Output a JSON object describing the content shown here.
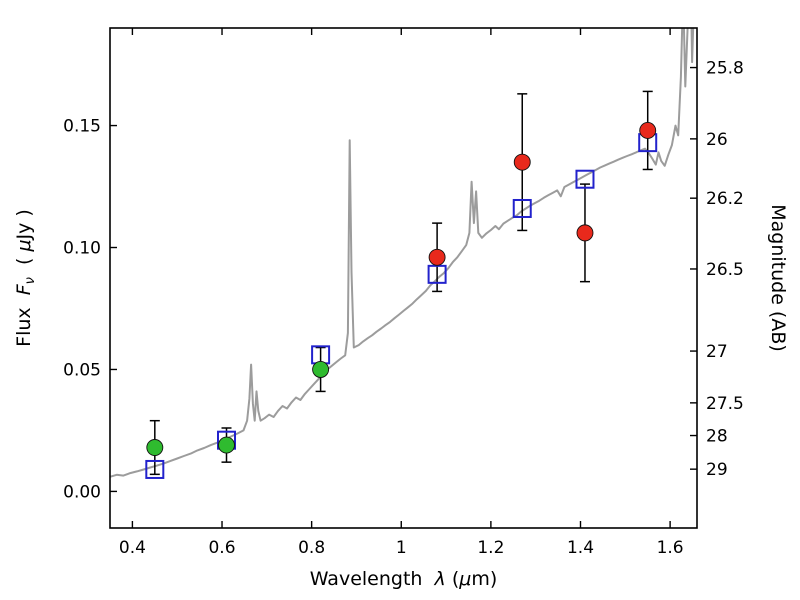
{
  "figure": {
    "background": "#ffffff",
    "frame_color": "#000000"
  },
  "chart_data": {
    "type": "scatter",
    "title": "",
    "xlabel": "Wavelength λ (μm)",
    "ylabel": "Flux Fν ( μJy )",
    "y2label": "Magnitude (AB)",
    "xlabel_parts": [
      {
        "text": "Wavelength  ",
        "italic": false
      },
      {
        "text": "λ",
        "italic": true
      },
      {
        "text": " (",
        "italic": false
      },
      {
        "text": "μ",
        "italic": true
      },
      {
        "text": "m)",
        "italic": false
      }
    ],
    "ylabel_parts": [
      {
        "text": "Flux  ",
        "italic": false
      },
      {
        "text": "F",
        "italic": true
      },
      {
        "text": "ν",
        "italic": true,
        "sub": true
      },
      {
        "text": "  ( ",
        "italic": false
      },
      {
        "text": "μ",
        "italic": true
      },
      {
        "text": "Jy )",
        "italic": false
      }
    ],
    "xlim": [
      0.35,
      1.66
    ],
    "ylim": [
      -0.015,
      0.19
    ],
    "grid": false,
    "legend": "none",
    "x_ticks": [
      {
        "v": 0.4,
        "label": "0.4"
      },
      {
        "v": 0.6,
        "label": "0.6"
      },
      {
        "v": 0.8,
        "label": "0.8"
      },
      {
        "v": 1.0,
        "label": "1"
      },
      {
        "v": 1.2,
        "label": "1.2"
      },
      {
        "v": 1.4,
        "label": "1.4"
      },
      {
        "v": 1.6,
        "label": "1.6"
      }
    ],
    "y_ticks": [
      {
        "v": 0.0,
        "label": "0.00"
      },
      {
        "v": 0.05,
        "label": "0.05"
      },
      {
        "v": 0.1,
        "label": "0.10"
      },
      {
        "v": 0.15,
        "label": "0.15"
      }
    ],
    "mag_zero_point": 23.9,
    "mag_ticks": [
      {
        "m": 25.8,
        "label": "25.8"
      },
      {
        "m": 26.0,
        "label": "26"
      },
      {
        "m": 26.2,
        "label": "26.2"
      },
      {
        "m": 26.5,
        "label": "26.5"
      },
      {
        "m": 27.0,
        "label": "27"
      },
      {
        "m": 27.5,
        "label": "27.5"
      },
      {
        "m": 28.0,
        "label": "28"
      },
      {
        "m": 29.0,
        "label": "29"
      }
    ],
    "series": [
      {
        "name": "model-spectrum",
        "type": "line",
        "color": "#9c9c9c",
        "width": 2,
        "points": [
          [
            0.35,
            0.006
          ],
          [
            0.365,
            0.0068
          ],
          [
            0.38,
            0.0065
          ],
          [
            0.395,
            0.0075
          ],
          [
            0.41,
            0.0082
          ],
          [
            0.425,
            0.009
          ],
          [
            0.44,
            0.0098
          ],
          [
            0.455,
            0.0106
          ],
          [
            0.47,
            0.0115
          ],
          [
            0.485,
            0.0125
          ],
          [
            0.5,
            0.0135
          ],
          [
            0.515,
            0.0145
          ],
          [
            0.53,
            0.0155
          ],
          [
            0.545,
            0.0168
          ],
          [
            0.56,
            0.0178
          ],
          [
            0.575,
            0.019
          ],
          [
            0.59,
            0.02
          ],
          [
            0.605,
            0.0212
          ],
          [
            0.62,
            0.0225
          ],
          [
            0.635,
            0.0238
          ],
          [
            0.648,
            0.025
          ],
          [
            0.656,
            0.029
          ],
          [
            0.661,
            0.038
          ],
          [
            0.665,
            0.052
          ],
          [
            0.669,
            0.036
          ],
          [
            0.673,
            0.029
          ],
          [
            0.677,
            0.041
          ],
          [
            0.681,
            0.033
          ],
          [
            0.686,
            0.029
          ],
          [
            0.695,
            0.03
          ],
          [
            0.705,
            0.0315
          ],
          [
            0.715,
            0.0305
          ],
          [
            0.725,
            0.033
          ],
          [
            0.735,
            0.035
          ],
          [
            0.745,
            0.034
          ],
          [
            0.755,
            0.0365
          ],
          [
            0.765,
            0.0385
          ],
          [
            0.775,
            0.0375
          ],
          [
            0.785,
            0.04
          ],
          [
            0.795,
            0.042
          ],
          [
            0.805,
            0.044
          ],
          [
            0.815,
            0.046
          ],
          [
            0.825,
            0.048
          ],
          [
            0.835,
            0.05
          ],
          [
            0.845,
            0.0515
          ],
          [
            0.855,
            0.053
          ],
          [
            0.865,
            0.0545
          ],
          [
            0.875,
            0.0558
          ],
          [
            0.881,
            0.065
          ],
          [
            0.885,
            0.144
          ],
          [
            0.889,
            0.09
          ],
          [
            0.894,
            0.059
          ],
          [
            0.905,
            0.06
          ],
          [
            0.915,
            0.0615
          ],
          [
            0.925,
            0.0628
          ],
          [
            0.935,
            0.064
          ],
          [
            0.945,
            0.0655
          ],
          [
            0.955,
            0.0668
          ],
          [
            0.965,
            0.0682
          ],
          [
            0.975,
            0.0695
          ],
          [
            0.985,
            0.071
          ],
          [
            0.995,
            0.0725
          ],
          [
            1.005,
            0.074
          ],
          [
            1.015,
            0.0755
          ],
          [
            1.025,
            0.077
          ],
          [
            1.035,
            0.0788
          ],
          [
            1.045,
            0.0805
          ],
          [
            1.055,
            0.0822
          ],
          [
            1.065,
            0.0845
          ],
          [
            1.075,
            0.0862
          ],
          [
            1.085,
            0.088
          ],
          [
            1.095,
            0.0895
          ],
          [
            1.105,
            0.0915
          ],
          [
            1.115,
            0.094
          ],
          [
            1.125,
            0.096
          ],
          [
            1.135,
            0.0985
          ],
          [
            1.145,
            0.101
          ],
          [
            1.152,
            0.106
          ],
          [
            1.157,
            0.127
          ],
          [
            1.162,
            0.11
          ],
          [
            1.167,
            0.123
          ],
          [
            1.172,
            0.106
          ],
          [
            1.18,
            0.104
          ],
          [
            1.19,
            0.1058
          ],
          [
            1.2,
            0.1072
          ],
          [
            1.21,
            0.1088
          ],
          [
            1.218,
            0.1075
          ],
          [
            1.228,
            0.1098
          ],
          [
            1.238,
            0.111
          ],
          [
            1.248,
            0.1122
          ],
          [
            1.258,
            0.1132
          ],
          [
            1.268,
            0.1148
          ],
          [
            1.278,
            0.116
          ],
          [
            1.288,
            0.1172
          ],
          [
            1.298,
            0.1182
          ],
          [
            1.308,
            0.1192
          ],
          [
            1.318,
            0.1204
          ],
          [
            1.328,
            0.1214
          ],
          [
            1.338,
            0.1224
          ],
          [
            1.348,
            0.1234
          ],
          [
            1.356,
            0.121
          ],
          [
            1.364,
            0.1248
          ],
          [
            1.374,
            0.1258
          ],
          [
            1.384,
            0.1268
          ],
          [
            1.394,
            0.1278
          ],
          [
            1.404,
            0.1288
          ],
          [
            1.414,
            0.1298
          ],
          [
            1.424,
            0.1308
          ],
          [
            1.434,
            0.1318
          ],
          [
            1.444,
            0.1328
          ],
          [
            1.454,
            0.1336
          ],
          [
            1.464,
            0.1344
          ],
          [
            1.474,
            0.1352
          ],
          [
            1.484,
            0.136
          ],
          [
            1.494,
            0.1368
          ],
          [
            1.504,
            0.1375
          ],
          [
            1.514,
            0.1382
          ],
          [
            1.524,
            0.139
          ],
          [
            1.534,
            0.1398
          ],
          [
            1.544,
            0.1405
          ],
          [
            1.552,
            0.1388
          ],
          [
            1.56,
            0.1365
          ],
          [
            1.568,
            0.134
          ],
          [
            1.574,
            0.139
          ],
          [
            1.58,
            0.1355
          ],
          [
            1.588,
            0.1335
          ],
          [
            1.596,
            0.138
          ],
          [
            1.604,
            0.142
          ],
          [
            1.612,
            0.15
          ],
          [
            1.618,
            0.146
          ],
          [
            1.624,
            0.17
          ],
          [
            1.629,
            0.205
          ],
          [
            1.634,
            0.166
          ],
          [
            1.639,
            0.19
          ],
          [
            1.644,
            0.235
          ],
          [
            1.649,
            0.176
          ],
          [
            1.654,
            0.205
          ],
          [
            1.66,
            0.198
          ]
        ]
      },
      {
        "name": "model-photometry",
        "type": "squares",
        "color": "#2222cc",
        "size": 17,
        "x": [
          0.45,
          0.61,
          0.82,
          1.08,
          1.27,
          1.41,
          1.55
        ],
        "y": [
          0.009,
          0.021,
          0.056,
          0.089,
          0.116,
          0.128,
          0.143
        ]
      },
      {
        "name": "observed-optical",
        "type": "circles",
        "color": "#2fbb2f",
        "size": 8,
        "x": [
          0.45,
          0.61,
          0.82
        ],
        "y": [
          0.018,
          0.019,
          0.05
        ],
        "yerr": [
          0.011,
          0.007,
          0.009
        ]
      },
      {
        "name": "observed-nir",
        "type": "circles",
        "color": "#e8291c",
        "size": 8,
        "x": [
          1.08,
          1.27,
          1.41,
          1.55
        ],
        "y": [
          0.096,
          0.135,
          0.106,
          0.148
        ],
        "yerr": [
          0.014,
          0.028,
          0.02,
          0.016
        ]
      }
    ]
  }
}
